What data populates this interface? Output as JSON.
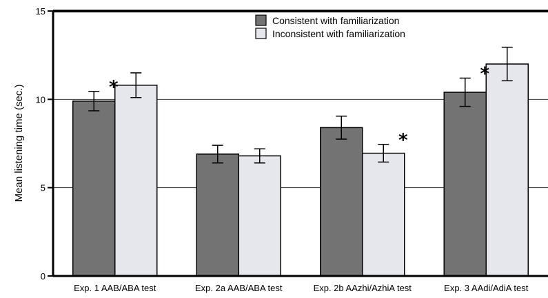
{
  "chart_data": {
    "type": "bar",
    "ylabel": "Mean listening time (sec.)",
    "ylim": [
      0,
      15
    ],
    "yticks": [
      0,
      5,
      10,
      15
    ],
    "grid": "horizontal",
    "legend_position": "top-center",
    "categories": [
      "Exp. 1 AAB/ABA test",
      "Exp. 2a AAB/ABA test",
      "Exp. 2b AAzhi/AzhiA test",
      "Exp. 3 AAdi/AdiA test"
    ],
    "series": [
      {
        "name": "Consistent with familiarization",
        "color": "#737373",
        "values": [
          9.9,
          6.9,
          8.4,
          10.4
        ],
        "errors": [
          0.55,
          0.5,
          0.65,
          0.8
        ]
      },
      {
        "name": "Inconsistent with familiarization",
        "color": "#e6e6ed",
        "values": [
          10.8,
          6.8,
          6.95,
          12.0
        ],
        "errors": [
          0.7,
          0.4,
          0.5,
          0.95
        ]
      }
    ],
    "annotations": [
      {
        "text": "*",
        "category": 0,
        "series": 0
      },
      {
        "text": "*",
        "category": 2,
        "series": 1
      },
      {
        "text": "*",
        "category": 3,
        "series": 0
      }
    ]
  }
}
